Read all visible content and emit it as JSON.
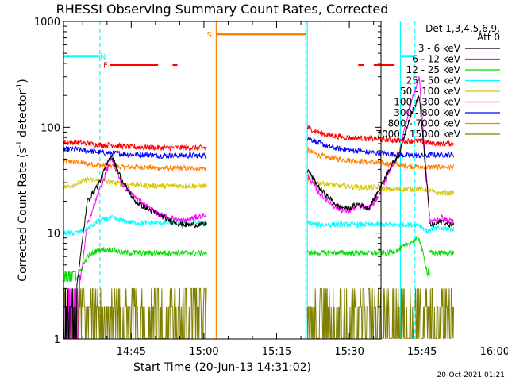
{
  "chart_data": {
    "type": "line",
    "title": "RHESSI Observing Summary Count Rates, Corrected",
    "xlabel": "Start Time (20-Jun-13 14:31:02)",
    "ylabel_main": "Corrected Count Rate (s",
    "ylabel_sup1": "-1",
    "ylabel_mid": " detector",
    "ylabel_sup2": "-1",
    "ylabel_end": ")",
    "footer": "20-Oct-2021 01:21",
    "y_scale": "log",
    "ylim": [
      1,
      1000
    ],
    "xlim_minutes_after_14_31_02": [
      0,
      65.5
    ],
    "x_tick_labels": [
      "14:45",
      "15:00",
      "15:15",
      "15:30",
      "15:45",
      "16:00"
    ],
    "x_ticks_minutes": [
      13.97,
      28.97,
      43.97,
      58.97,
      73.97,
      88.97
    ],
    "y_tick_labels": [
      "1",
      "10",
      "100",
      "1000"
    ],
    "y_ticks": [
      1,
      10,
      100,
      1000
    ],
    "legend_header": [
      "Det 1,3,4,5,6,9,",
      "Att 0"
    ],
    "legend_placement": "right",
    "series": [
      {
        "name": "3 - 6 keV",
        "color": "#000000"
      },
      {
        "name": "6 - 12 keV",
        "color": "#ff00ff"
      },
      {
        "name": "12 - 25 keV",
        "color": "#00dd00"
      },
      {
        "name": "25 - 50 keV",
        "color": "#00ffff"
      },
      {
        "name": "50 - 100 keV",
        "color": "#d4c800"
      },
      {
        "name": "100 - 300 keV",
        "color": "#ff0000"
      },
      {
        "name": "300 - 800 keV",
        "color": "#0000ff"
      },
      {
        "name": "800 - 7000 keV",
        "color": "#ff7f00"
      },
      {
        "name": "7000 - 15000 keV",
        "color": "#808000"
      }
    ],
    "segments": [
      {
        "x": [
          0,
          29.5
        ],
        "levels": {
          "3 - 6 keV": [
            2.5,
            2.5,
            20,
            30,
            55,
            30,
            20,
            17,
            15,
            13,
            12,
            12,
            12
          ],
          "6 - 12 keV": [
            1.5,
            1.5,
            12,
            25,
            50,
            28,
            22,
            18,
            15,
            14,
            13,
            14,
            15
          ],
          "12 - 25 keV": [
            3.5,
            3.5,
            6,
            7,
            7,
            6.5,
            6.5,
            6.5,
            6.5,
            6.5,
            6.5,
            6.5,
            6.5
          ],
          "25 - 50 keV": [
            10,
            10,
            11,
            13,
            14,
            13,
            12.5,
            12.5,
            12.5,
            12.5,
            12.5,
            12.5,
            12.5
          ],
          "50 - 100 keV": [
            27,
            29,
            32,
            31,
            30,
            29,
            29,
            28,
            28,
            28,
            28,
            28,
            28
          ],
          "100 - 300 keV": [
            72,
            72,
            70,
            68,
            68,
            66,
            65,
            65,
            64,
            64,
            64,
            64,
            64
          ],
          "300 - 800 keV": [
            62,
            62,
            60,
            58,
            57,
            56,
            55,
            55,
            54,
            54,
            54,
            54,
            54
          ],
          "800 - 7000 keV": [
            48,
            47,
            45,
            44,
            43,
            42,
            42,
            42,
            41,
            41,
            41,
            41,
            41
          ],
          "7000 - 15000 keV": [
            1.3,
            1.3,
            1.3,
            1.3,
            1.3,
            1.3,
            1.3,
            1.3,
            1.3,
            1.3,
            1.3,
            1.3,
            1.3
          ]
        }
      },
      {
        "x": [
          50.3,
          75.5
        ],
        "levels": {
          "3 - 6 keV": [
            40,
            28,
            22,
            18,
            17,
            19,
            17,
            25,
            40,
            55,
            120,
            200,
            15
          ],
          "6 - 12 keV": [
            35,
            25,
            20,
            17,
            16,
            18,
            17,
            22,
            38,
            55,
            150,
            300,
            14
          ],
          "12 - 25 keV": [
            6.5,
            6.5,
            6.5,
            6.5,
            6.5,
            6.5,
            6.5,
            6.5,
            6.5,
            7,
            8,
            9,
            3.5
          ],
          "25 - 50 keV": [
            12.5,
            12,
            12,
            12,
            12,
            12,
            12,
            12,
            12,
            12,
            12,
            12,
            10
          ],
          "50 - 100 keV": [
            33,
            30,
            29,
            28,
            28,
            27,
            27,
            27,
            26,
            26,
            26,
            26,
            26
          ],
          "100 - 300 keV": [
            100,
            90,
            85,
            82,
            80,
            79,
            78,
            77,
            76,
            75,
            74,
            74,
            72
          ],
          "300 - 800 keV": [
            80,
            72,
            66,
            63,
            61,
            60,
            58,
            57,
            56,
            55,
            54,
            54,
            54
          ],
          "800 - 7000 keV": [
            60,
            55,
            52,
            50,
            49,
            48,
            47,
            46,
            45,
            44,
            43,
            42,
            42
          ],
          "7000 - 15000 keV": [
            1.3,
            1.3,
            1.3,
            1.3,
            1.3,
            1.3,
            1.3,
            1.3,
            1.3,
            1.3,
            1.3,
            1.3,
            1.3
          ]
        }
      },
      {
        "x": [
          75.5,
          80.5
        ],
        "levels": {
          "3 - 6 keV": [
            12,
            12,
            13,
            12,
            12
          ],
          "6 - 12 keV": [
            13,
            13,
            14,
            13,
            13
          ],
          "12 - 25 keV": [
            6.5,
            6.5,
            6.5,
            6.5,
            6.5
          ],
          "25 - 50 keV": [
            11,
            11,
            11,
            11,
            11
          ],
          "50 - 100 keV": [
            25,
            24,
            24,
            24,
            24
          ],
          "100 - 300 keV": [
            70,
            70,
            70,
            70,
            70
          ],
          "300 - 800 keV": [
            55,
            55,
            55,
            55,
            55
          ],
          "800 - 7000 keV": [
            42,
            42,
            42,
            42,
            42
          ],
          "7000 - 15000 keV": [
            1.3,
            1.3,
            1.3,
            1.3,
            1.3
          ]
        }
      }
    ],
    "states": [
      {
        "label": "N",
        "color": "#00ffff",
        "bars": [
          [
            0,
            7.5
          ],
          [
            69.5,
            72.5
          ]
        ],
        "y": 470
      },
      {
        "label": "F",
        "color": "#ff0000",
        "bars": [
          [
            9.5,
            19.5
          ],
          [
            22.5,
            23.5
          ],
          [
            60.8,
            62
          ],
          [
            64,
            68.3
          ]
        ],
        "y": 390
      },
      {
        "label": "S",
        "color": "#ff7f00",
        "bars": [
          [
            31.5,
            50
          ]
        ],
        "y": 760
      }
    ],
    "state_lines": [
      {
        "x": 0,
        "color": "#00ffff",
        "dash": false
      },
      {
        "x": 7.5,
        "color": "#00ffff",
        "dash": true
      },
      {
        "x": 31.5,
        "color": "#ff7f00",
        "dash": false
      },
      {
        "x": 50,
        "color": "#ff7f00",
        "dash": true
      },
      {
        "x": 50.3,
        "color": "#00ffff",
        "dash": false
      },
      {
        "x": 69.5,
        "color": "#00ffff",
        "dash": false
      },
      {
        "x": 72.5,
        "color": "#00ffff",
        "dash": true
      }
    ]
  }
}
